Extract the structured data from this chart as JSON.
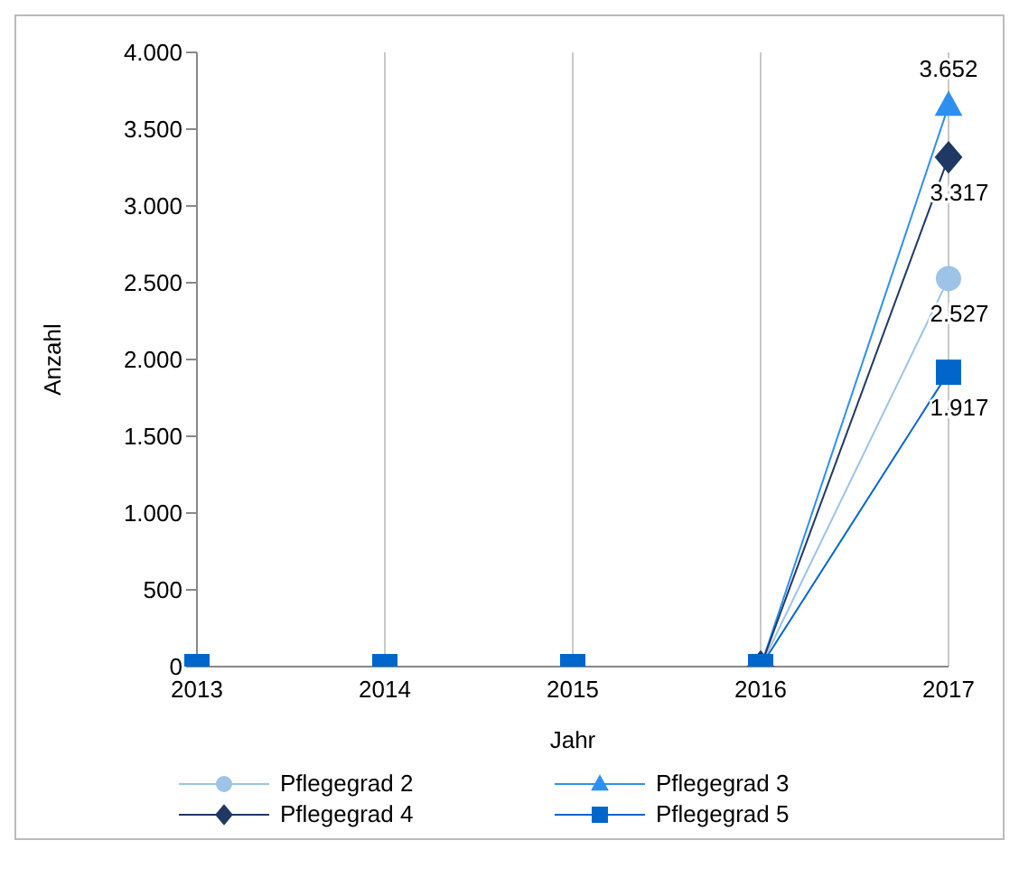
{
  "chart_data": {
    "type": "line",
    "xlabel": "Jahr",
    "ylabel": "Anzahl",
    "categories": [
      "2013",
      "2014",
      "2015",
      "2016",
      "2017"
    ],
    "series": [
      {
        "name": "Pflegegrad 2",
        "color": "#9dc3e6",
        "marker": "circle",
        "values": [
          0,
          0,
          0,
          0,
          2527
        ],
        "value_labels": [
          null,
          null,
          null,
          null,
          "2.527"
        ]
      },
      {
        "name": "Pflegegrad 3",
        "color": "#2e8ff0",
        "marker": "triangle",
        "values": [
          null,
          null,
          null,
          0,
          3652
        ],
        "value_labels": [
          null,
          null,
          null,
          null,
          "3.652"
        ]
      },
      {
        "name": "Pflegegrad 4",
        "color": "#1f3864",
        "marker": "diamond",
        "values": [
          null,
          null,
          null,
          0,
          3317
        ],
        "value_labels": [
          null,
          null,
          null,
          null,
          "3.317"
        ]
      },
      {
        "name": "Pflegegrad 5",
        "color": "#0066cc",
        "marker": "square",
        "values": [
          0,
          0,
          0,
          0,
          1917
        ],
        "value_labels": [
          null,
          null,
          null,
          null,
          "1.917"
        ]
      }
    ],
    "ylim": [
      0,
      4000
    ],
    "yticks": [
      {
        "value": 0,
        "label": "0"
      },
      {
        "value": 500,
        "label": "500"
      },
      {
        "value": 1000,
        "label": "1.000"
      },
      {
        "value": 1500,
        "label": "1.500"
      },
      {
        "value": 2000,
        "label": "2.000"
      },
      {
        "value": 2500,
        "label": "2.500"
      },
      {
        "value": 3000,
        "label": "3.000"
      },
      {
        "value": 3500,
        "label": "3.500"
      },
      {
        "value": 4000,
        "label": "4.000"
      }
    ],
    "grid": "x",
    "legend": "bottom"
  }
}
